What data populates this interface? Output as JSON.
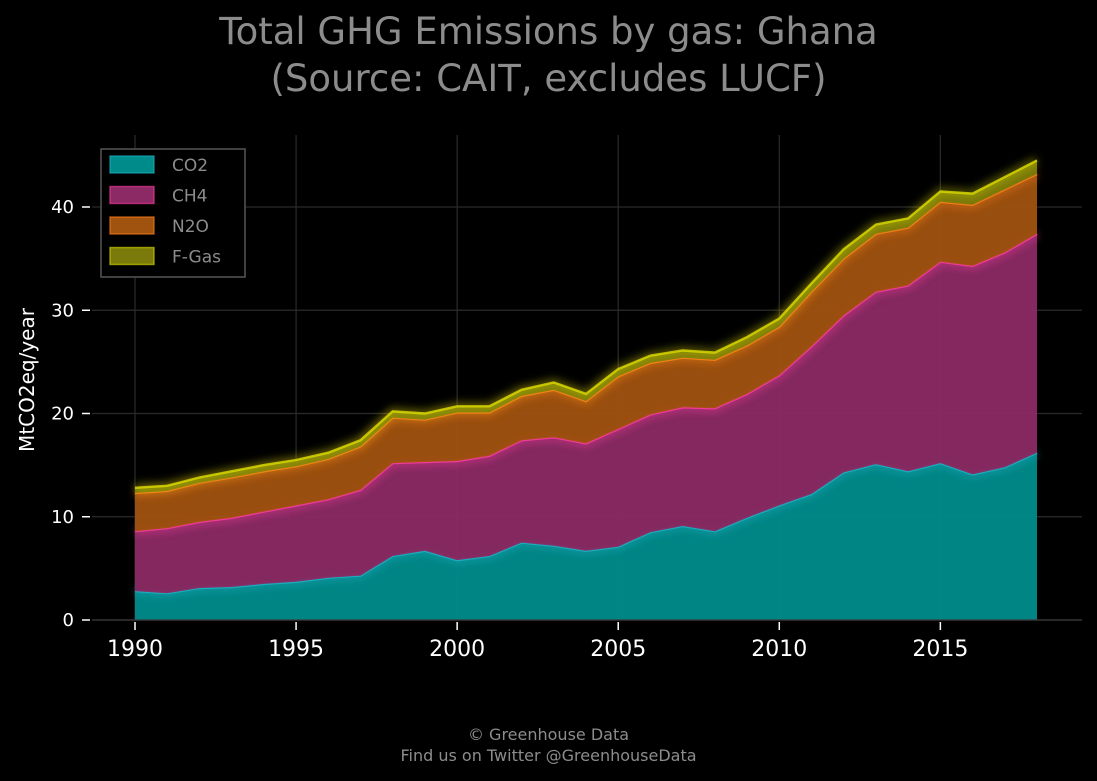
{
  "title": {
    "line1": "Total GHG Emissions by gas: Ghana",
    "line2": "(Source: CAIT, excludes LUCF)"
  },
  "footer": {
    "line1": "© Greenhouse Data",
    "line2": "Find us on Twitter @GreenhouseData"
  },
  "chart_data": {
    "type": "area",
    "stacked": true,
    "title": "Total GHG Emissions by gas: Ghana (Source: CAIT, excludes LUCF)",
    "xlabel": "",
    "ylabel": "MtCO2eq/year",
    "x": [
      1990,
      1991,
      1992,
      1993,
      1994,
      1995,
      1996,
      1997,
      1998,
      1999,
      2000,
      2001,
      2002,
      2003,
      2004,
      2005,
      2006,
      2007,
      2008,
      2009,
      2010,
      2011,
      2012,
      2013,
      2014,
      2015,
      2016,
      2017,
      2018
    ],
    "xlim": [
      1988.7,
      2018
    ],
    "ylim": [
      0,
      46
    ],
    "xticks": [
      1990,
      1995,
      2000,
      2005,
      2010,
      2015
    ],
    "yticks": [
      0,
      10,
      20,
      30,
      40
    ],
    "grid": true,
    "legend_position": "top-left",
    "series": [
      {
        "name": "CO2",
        "color": "#008b8b",
        "line_color": "#20b2c4",
        "values": [
          2.8,
          2.6,
          3.1,
          3.2,
          3.5,
          3.7,
          4.1,
          4.3,
          6.2,
          6.7,
          5.8,
          6.2,
          7.5,
          7.2,
          6.7,
          7.1,
          8.5,
          9.1,
          8.6,
          9.9,
          11.1,
          12.2,
          14.3,
          15.1,
          14.4,
          15.2,
          14.1,
          14.8,
          16.2
        ]
      },
      {
        "name": "CH4",
        "color": "#8b2a64",
        "line_color": "#ff3da0",
        "values": [
          5.8,
          6.3,
          6.4,
          6.7,
          7.0,
          7.4,
          7.6,
          8.3,
          9.0,
          8.6,
          9.6,
          9.7,
          9.9,
          10.5,
          10.4,
          11.4,
          11.4,
          11.5,
          11.9,
          12.0,
          12.6,
          14.3,
          15.2,
          16.7,
          18.0,
          19.5,
          20.2,
          20.8,
          21.2
        ]
      },
      {
        "name": "N2O",
        "color": "#a0520f",
        "line_color": "#ff7f1a",
        "values": [
          3.7,
          3.6,
          3.8,
          3.9,
          3.9,
          3.8,
          3.9,
          4.2,
          4.4,
          4.1,
          4.7,
          4.2,
          4.3,
          4.6,
          4.1,
          5.1,
          5.0,
          4.8,
          4.7,
          4.7,
          4.7,
          5.3,
          5.5,
          5.6,
          5.6,
          5.8,
          5.9,
          6.1,
          5.8
        ]
      },
      {
        "name": "F-Gas",
        "color": "#7a7a0a",
        "line_color": "#d7d700",
        "values": [
          0.5,
          0.5,
          0.5,
          0.6,
          0.6,
          0.6,
          0.6,
          0.6,
          0.6,
          0.6,
          0.6,
          0.6,
          0.6,
          0.7,
          0.7,
          0.7,
          0.7,
          0.7,
          0.7,
          0.8,
          0.8,
          0.8,
          0.9,
          0.9,
          0.9,
          1.0,
          1.1,
          1.2,
          1.3
        ]
      }
    ]
  }
}
